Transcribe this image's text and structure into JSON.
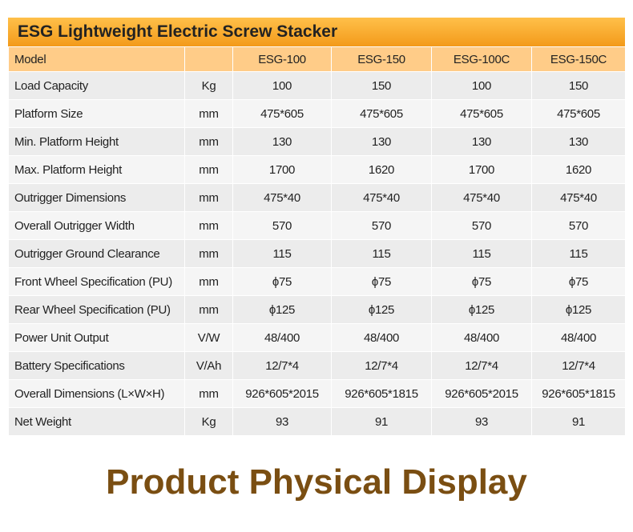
{
  "title": "ESG Lightweight Electric Screw Stacker",
  "table": {
    "header_label": "Model",
    "models": [
      "ESG-100",
      "ESG-150",
      "ESG-100C",
      "ESG-150C"
    ],
    "rows": [
      {
        "label": "Load Capacity",
        "unit": "Kg",
        "values": [
          "100",
          "150",
          "100",
          "150"
        ]
      },
      {
        "label": "Platform Size",
        "unit": "mm",
        "values": [
          "475*605",
          "475*605",
          "475*605",
          "475*605"
        ]
      },
      {
        "label": "Min. Platform Height",
        "unit": "mm",
        "values": [
          "130",
          "130",
          "130",
          "130"
        ]
      },
      {
        "label": "Max. Platform Height",
        "unit": "mm",
        "values": [
          "1700",
          "1620",
          "1700",
          "1620"
        ]
      },
      {
        "label": "Outrigger Dimensions",
        "unit": "mm",
        "values": [
          "475*40",
          "475*40",
          "475*40",
          "475*40"
        ]
      },
      {
        "label": "Overall Outrigger Width",
        "unit": "mm",
        "values": [
          "570",
          "570",
          "570",
          "570"
        ]
      },
      {
        "label": "Outrigger Ground Clearance",
        "unit": "mm",
        "values": [
          "115",
          "115",
          "115",
          "115"
        ]
      },
      {
        "label": "Front Wheel Specification (PU)",
        "unit": "mm",
        "values": [
          "ϕ75",
          "ϕ75",
          "ϕ75",
          "ϕ75"
        ]
      },
      {
        "label": "Rear Wheel Specification (PU)",
        "unit": "mm",
        "values": [
          "ϕ125",
          "ϕ125",
          "ϕ125",
          "ϕ125"
        ]
      },
      {
        "label": "Power Unit Output",
        "unit": "V/W",
        "values": [
          "48/400",
          "48/400",
          "48/400",
          "48/400"
        ]
      },
      {
        "label": "Battery Specifications",
        "unit": "V/Ah",
        "values": [
          "12/7*4",
          "12/7*4",
          "12/7*4",
          "12/7*4"
        ]
      },
      {
        "label": "Overall Dimensions (L×W×H)",
        "unit": "mm",
        "values": [
          "926*605*2015",
          "926*605*1815",
          "926*605*2015",
          "926*605*1815"
        ]
      },
      {
        "label": "Net Weight",
        "unit": "Kg",
        "values": [
          "93",
          "91",
          "93",
          "91"
        ]
      }
    ]
  },
  "footer": "Product Physical Display"
}
